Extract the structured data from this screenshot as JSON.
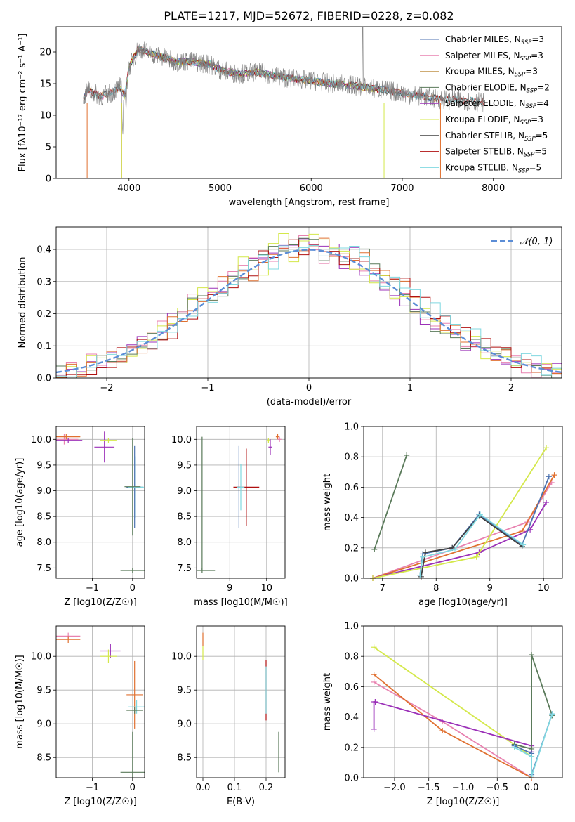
{
  "title": "PLATE=1217, MJD=52672, FIBERID=0228, z=0.082",
  "chart_data": [
    {
      "id": "spectrum",
      "type": "line",
      "xlabel": "wavelength [Angstrom, rest frame]",
      "ylabel": "Flux [fλ10⁻¹⁷ erg cm⁻² s⁻¹ A⁻¹]",
      "xlim": [
        3200,
        8750
      ],
      "ylim": [
        0,
        24
      ],
      "xticks": [
        4000,
        5000,
        6000,
        7000,
        8000
      ],
      "yticks": [
        0,
        5,
        10,
        15,
        20
      ],
      "grid": false,
      "legend_position": "top-right",
      "data_trace": {
        "color": "#808080",
        "x": [
          3500,
          3550,
          3600,
          3700,
          3800,
          3900,
          3950,
          4000,
          4100,
          4200,
          4300,
          4400,
          4500,
          4700,
          4900,
          5000,
          5200,
          5400,
          5600,
          5800,
          6000,
          6200,
          6400,
          6600,
          6800,
          7000,
          7200,
          7400,
          7600,
          7800,
          7900
        ],
        "y": [
          12.5,
          14.0,
          13.5,
          13.0,
          13.5,
          14.5,
          13.0,
          17.5,
          20.5,
          20.0,
          19.5,
          19.0,
          18.5,
          18.5,
          18.0,
          17.2,
          16.5,
          16.8,
          16.2,
          15.8,
          15.5,
          15.0,
          14.8,
          14.4,
          14.0,
          13.5,
          13.0,
          12.6,
          12.4,
          12.2,
          12.0
        ]
      },
      "series": [
        {
          "name": "Chabrier MILES, N",
          "sub": "SSP",
          "suffix": "=3",
          "color": "#4c72b0"
        },
        {
          "name": "Salpeter MILES, N",
          "sub": "SSP",
          "suffix": "=3",
          "color": "#e882b0"
        },
        {
          "name": "Kroupa MILES, N",
          "sub": "SSP",
          "suffix": "=3",
          "color": "#c8a060"
        },
        {
          "name": "Chabrier ELODIE, N",
          "sub": "SSP",
          "suffix": "=2",
          "color": "#5a7a5a"
        },
        {
          "name": "Salpeter ELODIE, N",
          "sub": "SSP",
          "suffix": "=4",
          "color": "#9b30b8"
        },
        {
          "name": "Kroupa ELODIE, N",
          "sub": "SSP",
          "suffix": "=3",
          "color": "#d4e84a"
        },
        {
          "name": "Chabrier STELIB, N",
          "sub": "SSP",
          "suffix": "=5",
          "color": "#404040"
        },
        {
          "name": "Salpeter STELIB, N",
          "sub": "SSP",
          "suffix": "=5",
          "color": "#b01010"
        },
        {
          "name": "Kroupa STELIB, N",
          "sub": "SSP",
          "suffix": "=5",
          "color": "#80d8e0"
        }
      ]
    },
    {
      "id": "residuals",
      "type": "line",
      "xlabel": "(data-model)/error",
      "ylabel": "Normed distribution",
      "xlim": [
        -2.5,
        2.5
      ],
      "ylim": [
        0,
        0.47
      ],
      "xticks": [
        -2,
        -1,
        0,
        1,
        2
      ],
      "yticks": [
        0.0,
        0.1,
        0.2,
        0.3,
        0.4
      ],
      "grid": true,
      "legend_position": "top-right",
      "legend_label": "𝒩(0, 1)",
      "reference_curve": {
        "name": "N(0,1)",
        "color": "#5b8dd6",
        "mean": 0,
        "sigma": 1
      },
      "hist_colors": [
        "#e882b0",
        "#9b30b8",
        "#d4e84a",
        "#5a7a5a",
        "#e07030",
        "#b01010",
        "#80d8e0"
      ]
    },
    {
      "id": "age-vs-Z",
      "type": "scatter",
      "xlabel": "Z [log10(Z/Z☉)]",
      "ylabel": "age [log10(age/yr)]",
      "xlim": [
        -1.9,
        0.3
      ],
      "ylim": [
        7.3,
        10.25
      ],
      "xticks": [
        -1,
        0
      ],
      "yticks": [
        7.5,
        8.0,
        8.5,
        9.0,
        9.5,
        10.0
      ],
      "grid": true,
      "points": [
        {
          "x": -1.7,
          "y": 10.0,
          "ex": 0.35,
          "ey": 0.1,
          "color": "#e882b0"
        },
        {
          "x": -1.65,
          "y": 10.05,
          "ex": 0.35,
          "ey": 0.05,
          "color": "#e07030"
        },
        {
          "x": -1.6,
          "y": 9.98,
          "ex": 0.35,
          "ey": 0.05,
          "color": "#9b30b8"
        },
        {
          "x": -0.7,
          "y": 9.85,
          "ex": 0.25,
          "ey": 0.3,
          "color": "#9b30b8"
        },
        {
          "x": -0.6,
          "y": 9.98,
          "ex": 0.2,
          "ey": 0.05,
          "color": "#d4e84a"
        },
        {
          "x": 0.05,
          "y": 9.07,
          "ex": 0.2,
          "ey": 0.8,
          "color": "#4c72b0"
        },
        {
          "x": 0.08,
          "y": 9.07,
          "ex": 0.2,
          "ey": 0.6,
          "color": "#80d8e0"
        },
        {
          "x": 0.0,
          "y": 9.08,
          "ex": 0.2,
          "ey": 0.95,
          "color": "#5a7a5a"
        },
        {
          "x": 0.0,
          "y": 7.45,
          "ex": 0.3,
          "ey": 0.05,
          "color": "#5a7a5a"
        }
      ]
    },
    {
      "id": "age-vs-mass",
      "type": "scatter",
      "xlabel": "mass [log10(M/M☉)]",
      "ylabel": "",
      "xlim": [
        8.1,
        10.5
      ],
      "ylim": [
        7.3,
        10.25
      ],
      "xticks": [
        9,
        10
      ],
      "yticks": [
        7.5,
        8.0,
        8.5,
        9.0,
        9.5,
        10.0
      ],
      "grid": true,
      "points": [
        {
          "x": 10.3,
          "y": 10.05,
          "ex": 0.05,
          "ey": 0.05,
          "color": "#e07030"
        },
        {
          "x": 10.35,
          "y": 10.0,
          "ex": 0.05,
          "ey": 0.05,
          "color": "#e882b0"
        },
        {
          "x": 10.05,
          "y": 9.98,
          "ex": 0.05,
          "ey": 0.05,
          "color": "#d4e84a"
        },
        {
          "x": 10.1,
          "y": 9.85,
          "ex": 0.05,
          "ey": 0.15,
          "color": "#9b30b8"
        },
        {
          "x": 9.25,
          "y": 9.07,
          "ex": 0.05,
          "ey": 0.8,
          "color": "#4c72b0"
        },
        {
          "x": 9.45,
          "y": 9.07,
          "ex": 0.35,
          "ey": 0.75,
          "color": "#b01010"
        },
        {
          "x": 9.3,
          "y": 9.07,
          "ex": 0.1,
          "ey": 0.45,
          "color": "#80d8e0"
        },
        {
          "x": 8.25,
          "y": 7.45,
          "ex": 0.35,
          "ey": 0.05,
          "color": "#5a7a5a"
        },
        {
          "x": 8.25,
          "y": 8.75,
          "ex": 0.0,
          "ey": 1.3,
          "color": "#5a7a5a"
        }
      ]
    },
    {
      "id": "weight-vs-age",
      "type": "line",
      "xlabel": "age [log10(age/yr)]",
      "ylabel": "mass weight",
      "xlim": [
        6.65,
        10.35
      ],
      "ylim": [
        0,
        1.0
      ],
      "xticks": [
        7,
        8,
        9,
        10
      ],
      "yticks": [
        0.0,
        0.2,
        0.4,
        0.6,
        0.8,
        1.0
      ],
      "grid": true,
      "series": [
        {
          "color": "#5a7a5a",
          "x": [
            6.85,
            7.45
          ],
          "y": [
            0.19,
            0.81
          ]
        },
        {
          "color": "#e882b0",
          "x": [
            6.82,
            9.7,
            10.15
          ],
          "y": [
            0.0,
            0.37,
            0.63
          ]
        },
        {
          "color": "#e07030",
          "x": [
            6.82,
            9.6,
            10.2
          ],
          "y": [
            0.0,
            0.31,
            0.68
          ]
        },
        {
          "color": "#9b30b8",
          "x": [
            6.82,
            8.8,
            9.75,
            10.05
          ],
          "y": [
            0.0,
            0.17,
            0.32,
            0.5
          ]
        },
        {
          "color": "#d4e84a",
          "x": [
            6.82,
            8.75,
            10.05
          ],
          "y": [
            0.0,
            0.14,
            0.86
          ]
        },
        {
          "color": "#4c72b0",
          "x": [
            7.7,
            7.75,
            8.3,
            8.8,
            9.6,
            10.1
          ],
          "y": [
            0.02,
            0.16,
            0.2,
            0.42,
            0.22,
            0.67
          ]
        },
        {
          "color": "#404040",
          "x": [
            7.72,
            7.8,
            8.3,
            8.8,
            9.6
          ],
          "y": [
            0.01,
            0.17,
            0.2,
            0.41,
            0.21
          ]
        },
        {
          "color": "#80d8e0",
          "x": [
            7.7,
            7.75,
            8.35,
            8.82,
            9.62
          ],
          "y": [
            0.02,
            0.14,
            0.19,
            0.42,
            0.22
          ]
        }
      ]
    },
    {
      "id": "mass-vs-Z",
      "type": "scatter",
      "xlabel": "Z [log10(Z/Z☉)]",
      "ylabel": "mass [log10(M/M☉)]",
      "xlim": [
        -1.9,
        0.3
      ],
      "ylim": [
        8.2,
        10.45
      ],
      "xticks": [
        -1,
        0
      ],
      "yticks": [
        8.5,
        9.0,
        9.5,
        10.0
      ],
      "grid": true,
      "points": [
        {
          "x": -1.6,
          "y": 10.3,
          "ex": 0.3,
          "ey": 0.05,
          "color": "#e882b0"
        },
        {
          "x": -1.6,
          "y": 10.25,
          "ex": 0.3,
          "ey": 0.05,
          "color": "#e07030"
        },
        {
          "x": -0.55,
          "y": 10.08,
          "ex": 0.25,
          "ey": 0.1,
          "color": "#9b30b8"
        },
        {
          "x": -0.6,
          "y": 10.0,
          "ex": 0.2,
          "ey": 0.1,
          "color": "#d4e84a"
        },
        {
          "x": 0.05,
          "y": 9.43,
          "ex": 0.2,
          "ey": 0.5,
          "color": "#e07030"
        },
        {
          "x": 0.1,
          "y": 9.25,
          "ex": 0.2,
          "ey": 0.1,
          "color": "#80d8e0"
        },
        {
          "x": 0.05,
          "y": 9.2,
          "ex": 0.2,
          "ey": 0.05,
          "color": "#5a7a5a"
        },
        {
          "x": 0.0,
          "y": 8.28,
          "ex": 0.3,
          "ey": 0.6,
          "color": "#5a7a5a"
        }
      ]
    },
    {
      "id": "mass-vs-EBV",
      "type": "scatter",
      "xlabel": "E(B-V)",
      "ylabel": "",
      "xlim": [
        -0.02,
        0.26
      ],
      "ylim": [
        8.2,
        10.45
      ],
      "xticks": [
        0.0,
        0.1,
        0.2
      ],
      "yticks": [
        8.5,
        9.0,
        9.5,
        10.0
      ],
      "grid": true,
      "points": [
        {
          "x": 0.0,
          "y": 10.25,
          "ex": 0.0,
          "ey": 0.1,
          "color": "#e07030"
        },
        {
          "x": 0.0,
          "y": 10.05,
          "ex": 0.0,
          "ey": 0.1,
          "color": "#d4e84a"
        },
        {
          "x": 0.2,
          "y": 9.5,
          "ex": 0.0,
          "ey": 0.45,
          "color": "#b01010"
        },
        {
          "x": 0.2,
          "y": 9.5,
          "ex": 0.0,
          "ey": 0.35,
          "color": "#80d8e0"
        },
        {
          "x": 0.24,
          "y": 8.58,
          "ex": 0.0,
          "ey": 0.3,
          "color": "#5a7a5a"
        }
      ]
    },
    {
      "id": "weight-vs-Z",
      "type": "line",
      "xlabel": "Z [log10(Z/Z☉)]",
      "ylabel": "mass weight",
      "xlim": [
        -2.45,
        0.45
      ],
      "ylim": [
        0,
        1.0
      ],
      "xticks": [
        -2.0,
        -1.5,
        -1.0,
        -0.5,
        0.0
      ],
      "yticks": [
        0.0,
        0.2,
        0.4,
        0.6,
        0.8,
        1.0
      ],
      "grid": true,
      "series": [
        {
          "color": "#d4e84a",
          "x": [
            -2.3,
            0.0
          ],
          "y": [
            0.86,
            0.14
          ]
        },
        {
          "color": "#e882b0",
          "x": [
            -2.3,
            -1.3,
            0.0
          ],
          "y": [
            0.63,
            0.37,
            0.0
          ]
        },
        {
          "color": "#e07030",
          "x": [
            -2.3,
            -1.3,
            0.0
          ],
          "y": [
            0.68,
            0.31,
            0.0
          ]
        },
        {
          "color": "#9b30b8",
          "x": [
            -2.3,
            -2.3,
            -2.28,
            0.0,
            0.0
          ],
          "y": [
            0.32,
            0.5,
            0.5,
            0.21,
            0.17
          ]
        },
        {
          "color": "#5a7a5a",
          "x": [
            -0.25,
            0.0,
            0.0,
            0.3
          ],
          "y": [
            0.22,
            0.19,
            0.81,
            0.41
          ]
        },
        {
          "color": "#4c72b0",
          "x": [
            -0.25,
            0.0,
            0.0,
            0.3
          ],
          "y": [
            0.21,
            0.16,
            0.02,
            0.42
          ]
        },
        {
          "color": "#80d8e0",
          "x": [
            -0.25,
            0.0,
            0.0,
            0.3
          ],
          "y": [
            0.2,
            0.14,
            0.01,
            0.42
          ]
        }
      ]
    }
  ]
}
